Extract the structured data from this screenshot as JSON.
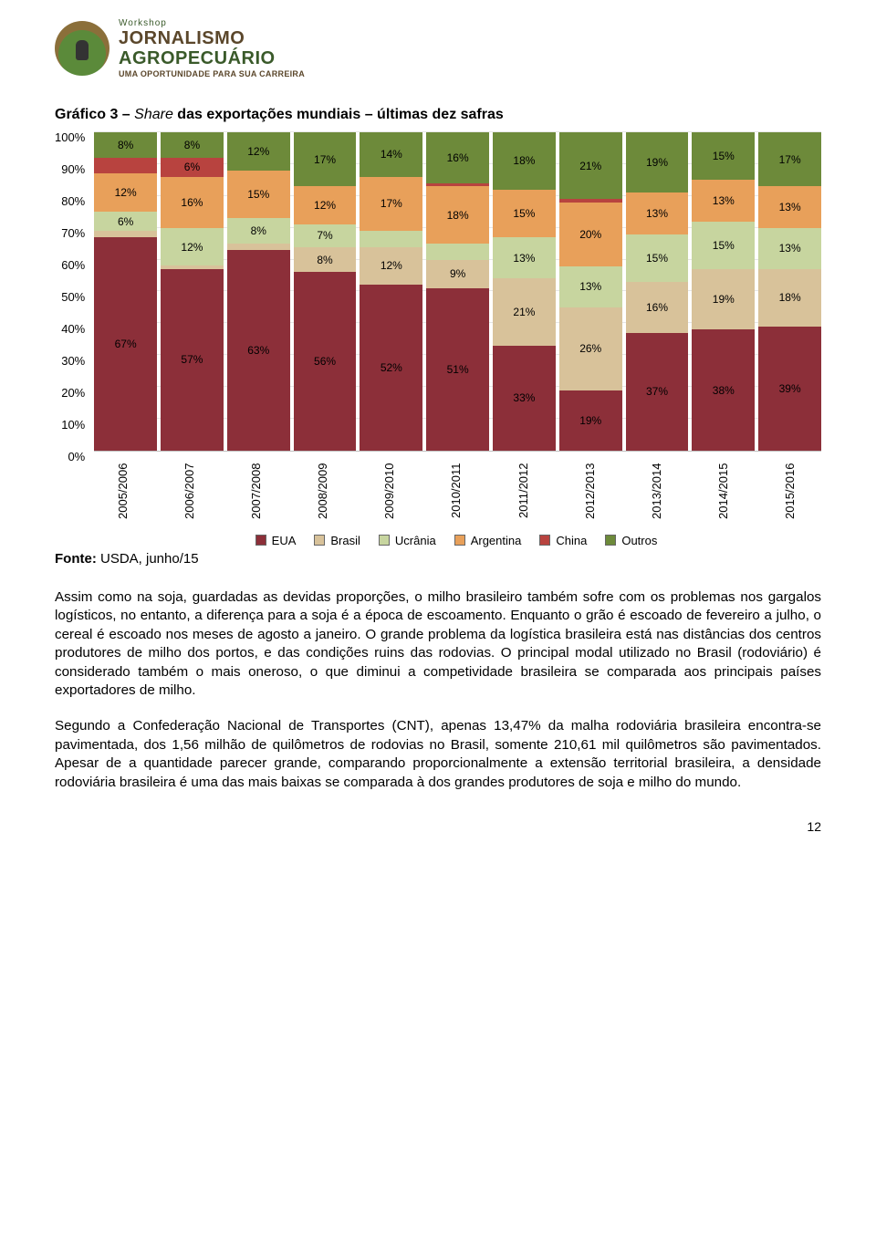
{
  "logo": {
    "line1": "Workshop",
    "line2": "JORNALISMO",
    "line3": "AGROPECUÁRIO",
    "line4": "UMA OPORTUNIDADE PARA SUA CARREIRA"
  },
  "chart": {
    "type": "stacked-bar-100",
    "title_prefix": "Gráfico 3 – ",
    "title_italic": "Share",
    "title_rest": " das exportações mundiais – últimas dez safras",
    "y_ticks": [
      "0%",
      "10%",
      "20%",
      "30%",
      "40%",
      "50%",
      "60%",
      "70%",
      "80%",
      "90%",
      "100%"
    ],
    "categories": [
      "2005/2006",
      "2006/2007",
      "2007/2008",
      "2008/2009",
      "2009/2010",
      "2010/2011",
      "2011/2012",
      "2012/2013",
      "2013/2014",
      "2014/2015",
      "2015/2016"
    ],
    "legend": [
      "EUA",
      "Brasil",
      "Ucrânia",
      "Argentina",
      "China",
      "Outros"
    ],
    "colors": {
      "EUA": "#8c2f39",
      "Brasil": "#d8c29a",
      "Ucrânia": "#c7d59f",
      "Argentina": "#e8a05a",
      "China": "#b8433f",
      "Outros": "#6d8a3a"
    },
    "grid_color": "#e6e6e6",
    "background": "#ffffff",
    "series": [
      {
        "cat": "2005/2006",
        "segs": [
          {
            "k": "EUA",
            "v": 67
          },
          {
            "k": "Brasil",
            "v": 2,
            "hide": true
          },
          {
            "k": "Ucrânia",
            "v": 6
          },
          {
            "k": "Argentina",
            "v": 12
          },
          {
            "k": "China",
            "v": 5
          },
          {
            "k": "Outros",
            "v": 8
          }
        ]
      },
      {
        "cat": "2006/2007",
        "segs": [
          {
            "k": "EUA",
            "v": 57
          },
          {
            "k": "Brasil",
            "v": 1,
            "hide": true
          },
          {
            "k": "Ucrânia",
            "v": 12
          },
          {
            "k": "Argentina",
            "v": 16
          },
          {
            "k": "China",
            "v": 6
          },
          {
            "k": "Outros",
            "v": 8
          }
        ]
      },
      {
        "cat": "2007/2008",
        "segs": [
          {
            "k": "EUA",
            "v": 63
          },
          {
            "k": "Brasil",
            "v": 2,
            "hide": true
          },
          {
            "k": "Ucrânia",
            "v": 8
          },
          {
            "k": "Argentina",
            "v": 15
          },
          {
            "k": "Outros",
            "v": 12
          }
        ]
      },
      {
        "cat": "2008/2009",
        "segs": [
          {
            "k": "EUA",
            "v": 56
          },
          {
            "k": "Brasil",
            "v": 8
          },
          {
            "k": "Ucrânia",
            "v": 7
          },
          {
            "k": "Argentina",
            "v": 12
          },
          {
            "k": "Outros",
            "v": 17
          }
        ]
      },
      {
        "cat": "2009/2010",
        "segs": [
          {
            "k": "EUA",
            "v": 52
          },
          {
            "k": "Brasil",
            "v": 12
          },
          {
            "k": "Ucrânia",
            "v": 5
          },
          {
            "k": "Argentina",
            "v": 17
          },
          {
            "k": "Outros",
            "v": 14
          }
        ]
      },
      {
        "cat": "2010/2011",
        "segs": [
          {
            "k": "EUA",
            "v": 51
          },
          {
            "k": "Brasil",
            "v": 9
          },
          {
            "k": "Ucrânia",
            "v": 5
          },
          {
            "k": "Argentina",
            "v": 18
          },
          {
            "k": "China",
            "v": 1,
            "hide": true
          },
          {
            "k": "Outros",
            "v": 16
          }
        ]
      },
      {
        "cat": "2011/2012",
        "segs": [
          {
            "k": "EUA",
            "v": 33
          },
          {
            "k": "Brasil",
            "v": 21
          },
          {
            "k": "Ucrânia",
            "v": 13
          },
          {
            "k": "Argentina",
            "v": 15
          },
          {
            "k": "Outros",
            "v": 18
          }
        ]
      },
      {
        "cat": "2012/2013",
        "segs": [
          {
            "k": "EUA",
            "v": 19
          },
          {
            "k": "Brasil",
            "v": 26
          },
          {
            "k": "Ucrânia",
            "v": 13
          },
          {
            "k": "Argentina",
            "v": 20
          },
          {
            "k": "China",
            "v": 1,
            "hide": true
          },
          {
            "k": "Outros",
            "v": 21
          }
        ]
      },
      {
        "cat": "2013/2014",
        "segs": [
          {
            "k": "EUA",
            "v": 37
          },
          {
            "k": "Brasil",
            "v": 16
          },
          {
            "k": "Ucrânia",
            "v": 15
          },
          {
            "k": "Argentina",
            "v": 13
          },
          {
            "k": "Outros",
            "v": 19
          }
        ]
      },
      {
        "cat": "2014/2015",
        "segs": [
          {
            "k": "EUA",
            "v": 38
          },
          {
            "k": "Brasil",
            "v": 19
          },
          {
            "k": "Ucrânia",
            "v": 15
          },
          {
            "k": "Argentina",
            "v": 13
          },
          {
            "k": "Outros",
            "v": 15
          }
        ]
      },
      {
        "cat": "2015/2016",
        "segs": [
          {
            "k": "EUA",
            "v": 39
          },
          {
            "k": "Brasil",
            "v": 18
          },
          {
            "k": "Ucrânia",
            "v": 13
          },
          {
            "k": "Argentina",
            "v": 13
          },
          {
            "k": "Outros",
            "v": 17
          }
        ]
      }
    ],
    "source_label": "Fonte: ",
    "source_value": "USDA, junho/15"
  },
  "paragraphs": [
    "Assim como na soja, guardadas as devidas proporções, o milho brasileiro também sofre com os problemas nos gargalos logísticos, no entanto, a diferença para a soja é a época de escoamento. Enquanto o grão é escoado de fevereiro a julho, o cereal é escoado nos meses de agosto a janeiro. O grande problema da logística brasileira está nas distâncias dos centros produtores de milho dos portos, e das condições ruins das rodovias. O principal modal utilizado no Brasil (rodoviário) é considerado também o mais oneroso, o que diminui a competividade brasileira se comparada aos principais países exportadores de milho.",
    "Segundo a Confederação Nacional de Transportes (CNT), apenas 13,47% da malha rodoviária brasileira encontra-se pavimentada, dos 1,56 milhão de quilômetros de rodovias no Brasil, somente 210,61 mil quilômetros são pavimentados. Apesar de a quantidade parecer grande, comparando proporcionalmente a extensão territorial brasileira, a densidade rodoviária brasileira é uma das mais baixas se comparada à dos grandes produtores de soja e milho do mundo."
  ],
  "page_number": "12"
}
